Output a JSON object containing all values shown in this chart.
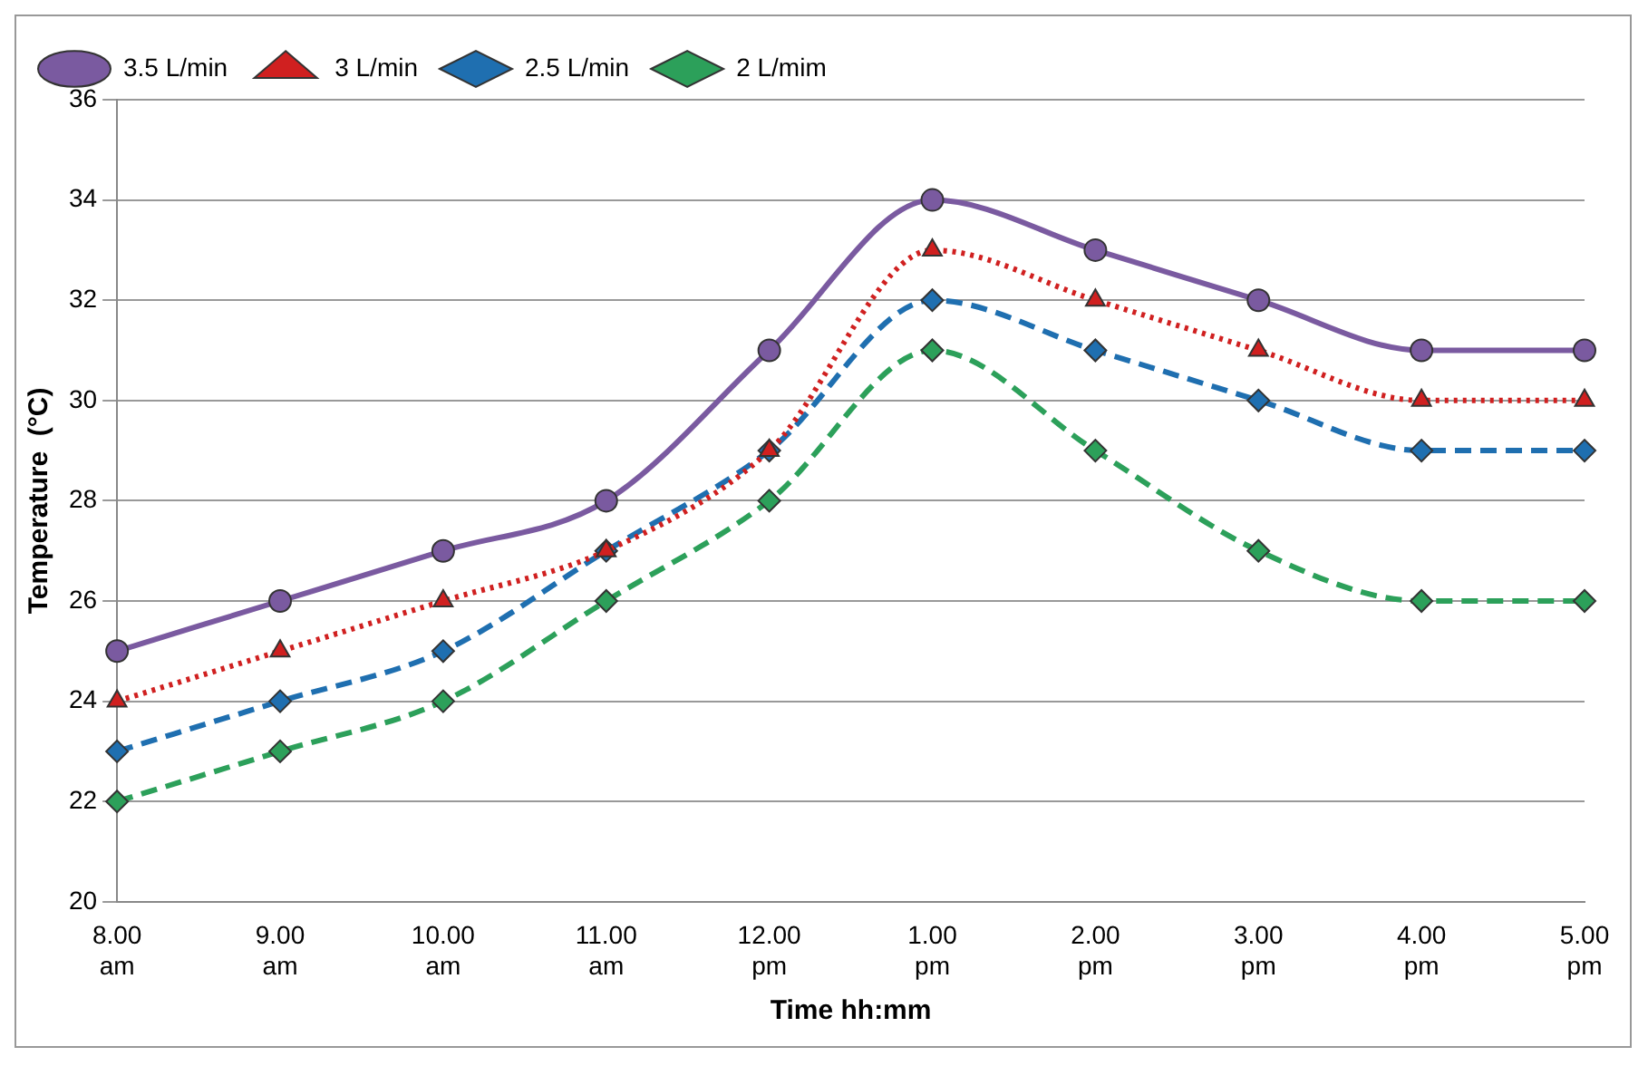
{
  "chart_data": {
    "type": "line",
    "xlabel": "Time hh:mm",
    "ylabel": "Temperature  (°C)",
    "categories": [
      "8.00 am",
      "9.00 am",
      "10.00 am",
      "11.00 am",
      "12.00 pm",
      "1.00 pm",
      "2.00 pm",
      "3.00 pm",
      "4.00 pm",
      "5.00 pm"
    ],
    "series": [
      {
        "name": "2 L/mim",
        "color": "#2ca05a",
        "marker": "diamond",
        "line_style": "dashed",
        "values": [
          22,
          23,
          24,
          26,
          28,
          31,
          29,
          27,
          26,
          26
        ]
      },
      {
        "name": "2.5 L/min",
        "color": "#1f6fb0",
        "marker": "diamond",
        "line_style": "dashed",
        "values": [
          23,
          24,
          25,
          27,
          29,
          32,
          31,
          30,
          29,
          29
        ]
      },
      {
        "name": "3 L/min",
        "color": "#d02020",
        "marker": "triangle",
        "line_style": "dotted",
        "values": [
          24,
          25,
          26,
          27,
          29,
          33,
          32,
          31,
          30,
          30
        ]
      },
      {
        "name": "3.5 L/min",
        "color": "#7a5aa0",
        "marker": "circle",
        "line_style": "solid",
        "values": [
          25,
          26,
          27,
          28,
          31,
          34,
          33,
          32,
          31,
          31
        ]
      }
    ],
    "ylim": [
      20,
      36
    ],
    "yticks": [
      20,
      22,
      24,
      26,
      28,
      30,
      32,
      34,
      36
    ],
    "grid": "y",
    "legend": "top left"
  }
}
